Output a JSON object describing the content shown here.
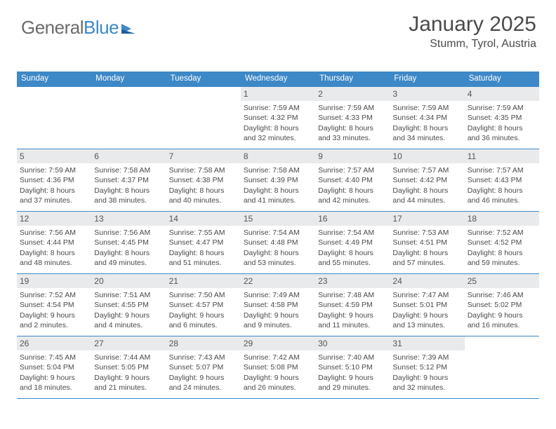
{
  "brand": {
    "part1": "General",
    "part2": "Blue"
  },
  "title": "January 2025",
  "location": "Stumm, Tyrol, Austria",
  "colors": {
    "header_bg": "#3d88c7",
    "header_text": "#ffffff",
    "daynum_bg": "#e9eaeb",
    "border": "#3d88c7",
    "body_text": "#4a4a4a",
    "background": "#ffffff",
    "logo_blue": "#3d88c7",
    "logo_gray": "#6b6b6b"
  },
  "weekdays": [
    "Sunday",
    "Monday",
    "Tuesday",
    "Wednesday",
    "Thursday",
    "Friday",
    "Saturday"
  ],
  "weeks": [
    [
      null,
      null,
      null,
      {
        "day": "1",
        "sunrise": "Sunrise: 7:59 AM",
        "sunset": "Sunset: 4:32 PM",
        "day1": "Daylight: 8 hours",
        "day2": "and 32 minutes."
      },
      {
        "day": "2",
        "sunrise": "Sunrise: 7:59 AM",
        "sunset": "Sunset: 4:33 PM",
        "day1": "Daylight: 8 hours",
        "day2": "and 33 minutes."
      },
      {
        "day": "3",
        "sunrise": "Sunrise: 7:59 AM",
        "sunset": "Sunset: 4:34 PM",
        "day1": "Daylight: 8 hours",
        "day2": "and 34 minutes."
      },
      {
        "day": "4",
        "sunrise": "Sunrise: 7:59 AM",
        "sunset": "Sunset: 4:35 PM",
        "day1": "Daylight: 8 hours",
        "day2": "and 36 minutes."
      }
    ],
    [
      {
        "day": "5",
        "sunrise": "Sunrise: 7:59 AM",
        "sunset": "Sunset: 4:36 PM",
        "day1": "Daylight: 8 hours",
        "day2": "and 37 minutes."
      },
      {
        "day": "6",
        "sunrise": "Sunrise: 7:58 AM",
        "sunset": "Sunset: 4:37 PM",
        "day1": "Daylight: 8 hours",
        "day2": "and 38 minutes."
      },
      {
        "day": "7",
        "sunrise": "Sunrise: 7:58 AM",
        "sunset": "Sunset: 4:38 PM",
        "day1": "Daylight: 8 hours",
        "day2": "and 40 minutes."
      },
      {
        "day": "8",
        "sunrise": "Sunrise: 7:58 AM",
        "sunset": "Sunset: 4:39 PM",
        "day1": "Daylight: 8 hours",
        "day2": "and 41 minutes."
      },
      {
        "day": "9",
        "sunrise": "Sunrise: 7:57 AM",
        "sunset": "Sunset: 4:40 PM",
        "day1": "Daylight: 8 hours",
        "day2": "and 42 minutes."
      },
      {
        "day": "10",
        "sunrise": "Sunrise: 7:57 AM",
        "sunset": "Sunset: 4:42 PM",
        "day1": "Daylight: 8 hours",
        "day2": "and 44 minutes."
      },
      {
        "day": "11",
        "sunrise": "Sunrise: 7:57 AM",
        "sunset": "Sunset: 4:43 PM",
        "day1": "Daylight: 8 hours",
        "day2": "and 46 minutes."
      }
    ],
    [
      {
        "day": "12",
        "sunrise": "Sunrise: 7:56 AM",
        "sunset": "Sunset: 4:44 PM",
        "day1": "Daylight: 8 hours",
        "day2": "and 48 minutes."
      },
      {
        "day": "13",
        "sunrise": "Sunrise: 7:56 AM",
        "sunset": "Sunset: 4:45 PM",
        "day1": "Daylight: 8 hours",
        "day2": "and 49 minutes."
      },
      {
        "day": "14",
        "sunrise": "Sunrise: 7:55 AM",
        "sunset": "Sunset: 4:47 PM",
        "day1": "Daylight: 8 hours",
        "day2": "and 51 minutes."
      },
      {
        "day": "15",
        "sunrise": "Sunrise: 7:54 AM",
        "sunset": "Sunset: 4:48 PM",
        "day1": "Daylight: 8 hours",
        "day2": "and 53 minutes."
      },
      {
        "day": "16",
        "sunrise": "Sunrise: 7:54 AM",
        "sunset": "Sunset: 4:49 PM",
        "day1": "Daylight: 8 hours",
        "day2": "and 55 minutes."
      },
      {
        "day": "17",
        "sunrise": "Sunrise: 7:53 AM",
        "sunset": "Sunset: 4:51 PM",
        "day1": "Daylight: 8 hours",
        "day2": "and 57 minutes."
      },
      {
        "day": "18",
        "sunrise": "Sunrise: 7:52 AM",
        "sunset": "Sunset: 4:52 PM",
        "day1": "Daylight: 8 hours",
        "day2": "and 59 minutes."
      }
    ],
    [
      {
        "day": "19",
        "sunrise": "Sunrise: 7:52 AM",
        "sunset": "Sunset: 4:54 PM",
        "day1": "Daylight: 9 hours",
        "day2": "and 2 minutes."
      },
      {
        "day": "20",
        "sunrise": "Sunrise: 7:51 AM",
        "sunset": "Sunset: 4:55 PM",
        "day1": "Daylight: 9 hours",
        "day2": "and 4 minutes."
      },
      {
        "day": "21",
        "sunrise": "Sunrise: 7:50 AM",
        "sunset": "Sunset: 4:57 PM",
        "day1": "Daylight: 9 hours",
        "day2": "and 6 minutes."
      },
      {
        "day": "22",
        "sunrise": "Sunrise: 7:49 AM",
        "sunset": "Sunset: 4:58 PM",
        "day1": "Daylight: 9 hours",
        "day2": "and 9 minutes."
      },
      {
        "day": "23",
        "sunrise": "Sunrise: 7:48 AM",
        "sunset": "Sunset: 4:59 PM",
        "day1": "Daylight: 9 hours",
        "day2": "and 11 minutes."
      },
      {
        "day": "24",
        "sunrise": "Sunrise: 7:47 AM",
        "sunset": "Sunset: 5:01 PM",
        "day1": "Daylight: 9 hours",
        "day2": "and 13 minutes."
      },
      {
        "day": "25",
        "sunrise": "Sunrise: 7:46 AM",
        "sunset": "Sunset: 5:02 PM",
        "day1": "Daylight: 9 hours",
        "day2": "and 16 minutes."
      }
    ],
    [
      {
        "day": "26",
        "sunrise": "Sunrise: 7:45 AM",
        "sunset": "Sunset: 5:04 PM",
        "day1": "Daylight: 9 hours",
        "day2": "and 18 minutes."
      },
      {
        "day": "27",
        "sunrise": "Sunrise: 7:44 AM",
        "sunset": "Sunset: 5:05 PM",
        "day1": "Daylight: 9 hours",
        "day2": "and 21 minutes."
      },
      {
        "day": "28",
        "sunrise": "Sunrise: 7:43 AM",
        "sunset": "Sunset: 5:07 PM",
        "day1": "Daylight: 9 hours",
        "day2": "and 24 minutes."
      },
      {
        "day": "29",
        "sunrise": "Sunrise: 7:42 AM",
        "sunset": "Sunset: 5:08 PM",
        "day1": "Daylight: 9 hours",
        "day2": "and 26 minutes."
      },
      {
        "day": "30",
        "sunrise": "Sunrise: 7:40 AM",
        "sunset": "Sunset: 5:10 PM",
        "day1": "Daylight: 9 hours",
        "day2": "and 29 minutes."
      },
      {
        "day": "31",
        "sunrise": "Sunrise: 7:39 AM",
        "sunset": "Sunset: 5:12 PM",
        "day1": "Daylight: 9 hours",
        "day2": "and 32 minutes."
      },
      null
    ]
  ]
}
